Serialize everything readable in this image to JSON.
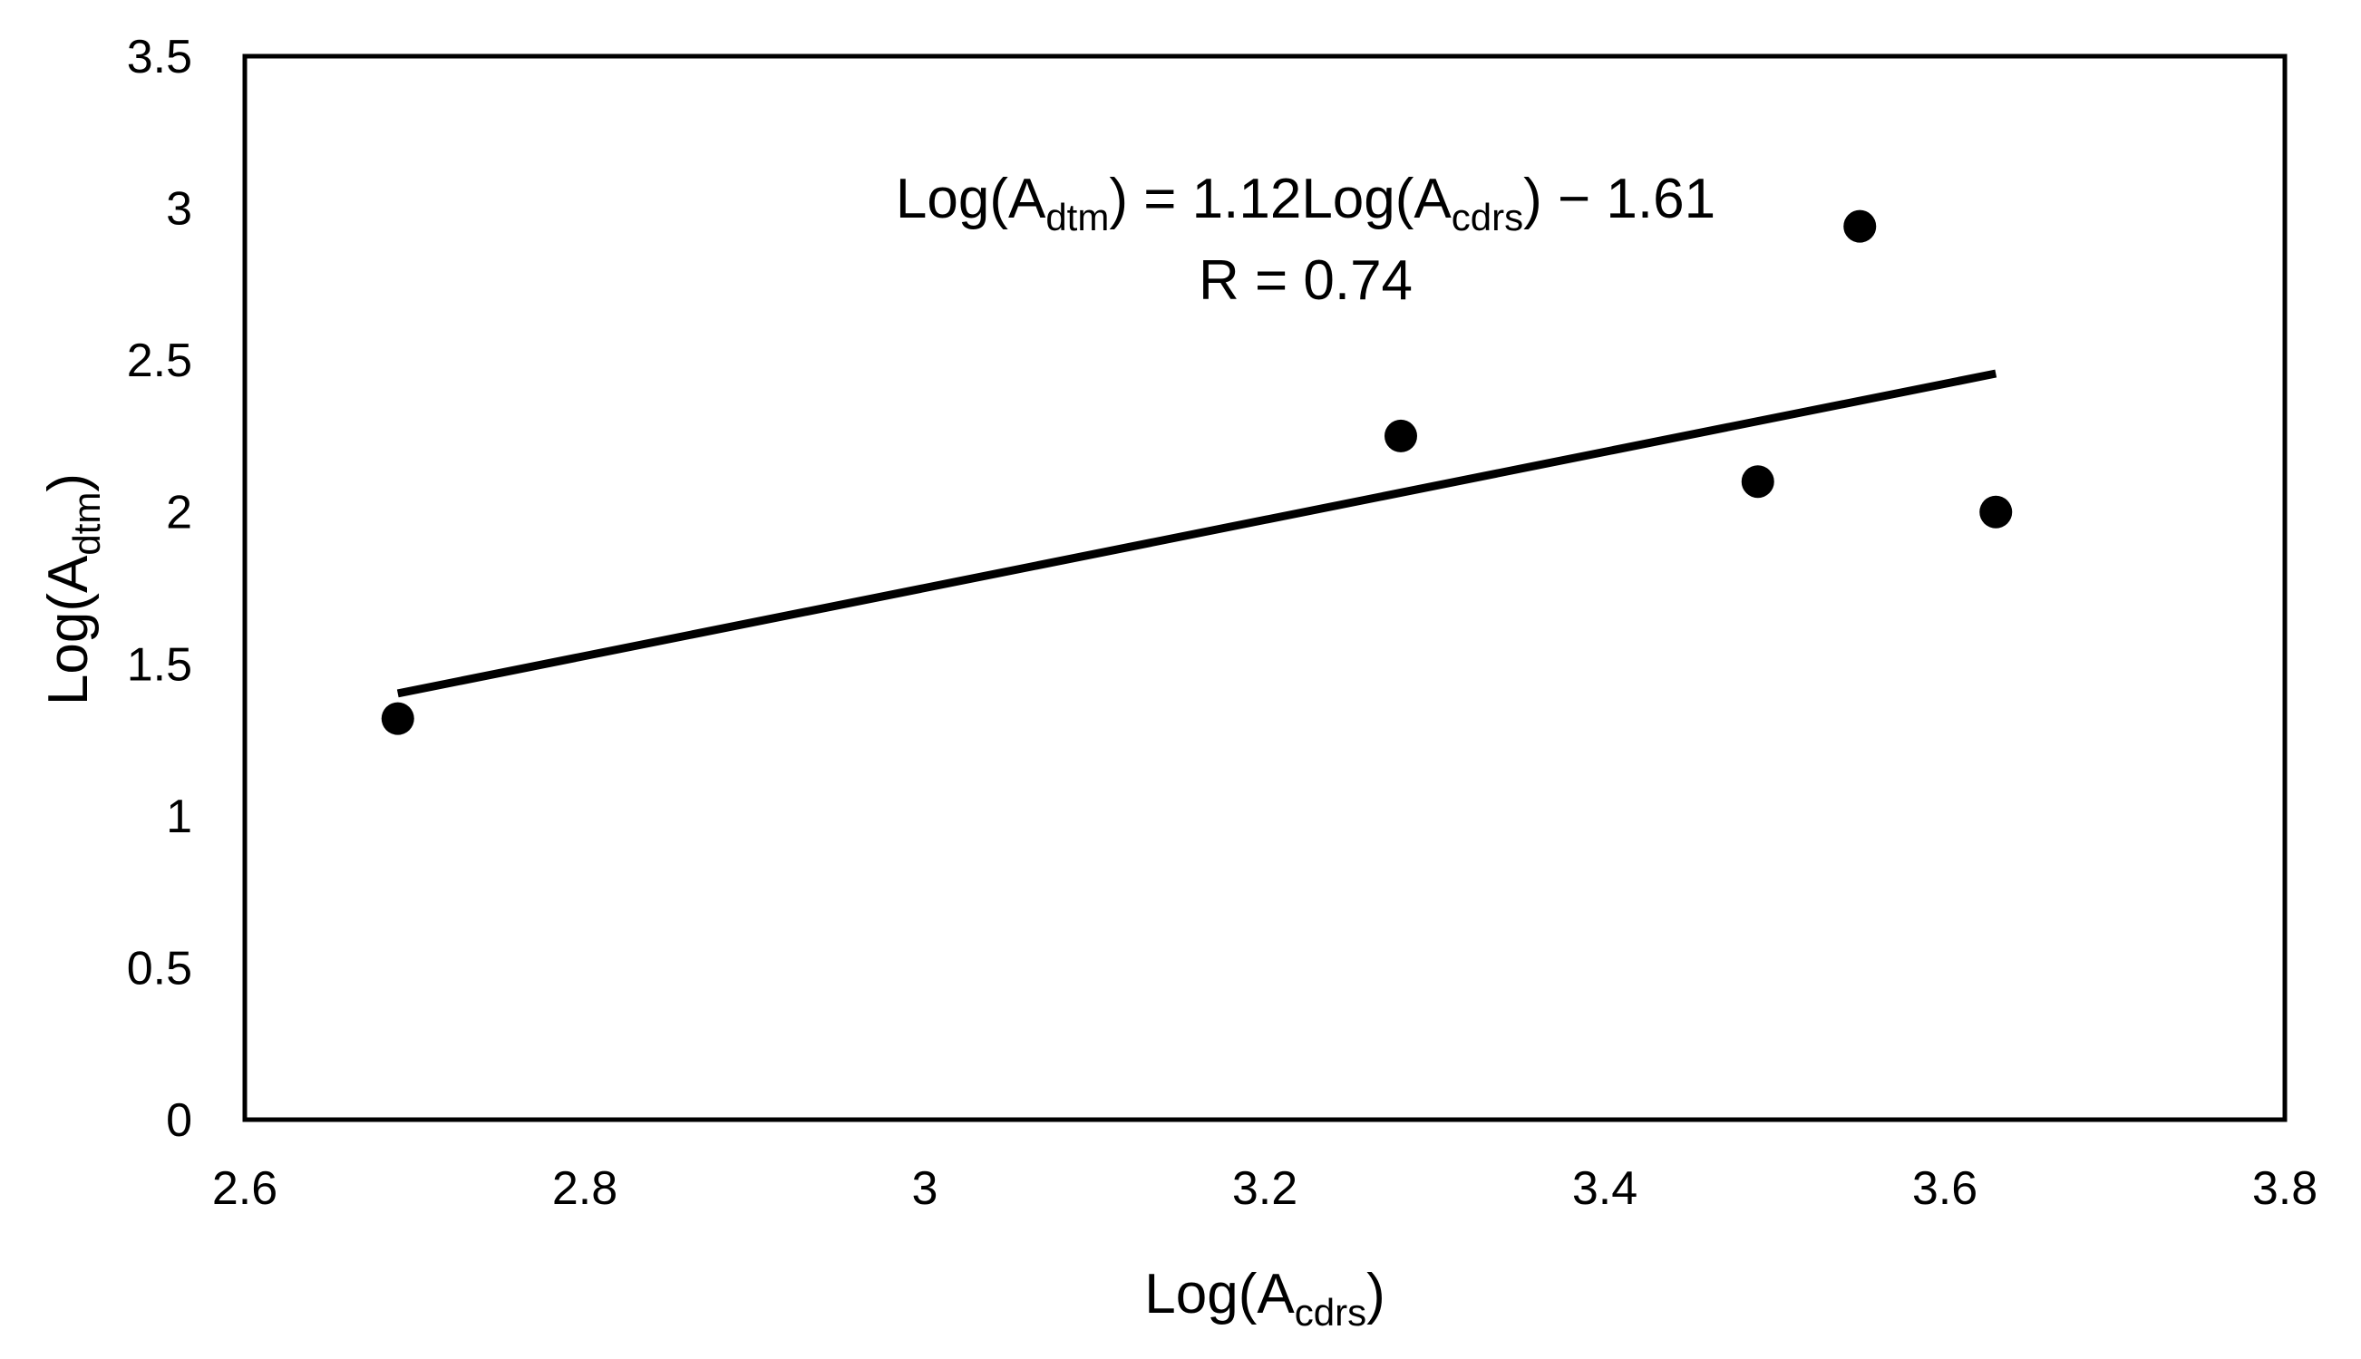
{
  "chart_data": {
    "type": "scatter",
    "title": "",
    "xlabel": {
      "base": "Log(A",
      "sub": "cdrs",
      "tail": ")"
    },
    "ylabel": {
      "base": "Log(A",
      "sub": "dtm",
      "tail": ")"
    },
    "xlim": [
      2.6,
      3.8
    ],
    "ylim": [
      0,
      3.5
    ],
    "xticks": [
      "2.6",
      "2.8",
      "3",
      "3.2",
      "3.4",
      "3.6",
      "3.8"
    ],
    "yticks": [
      "0",
      "0.5",
      "1",
      "1.5",
      "2",
      "2.5",
      "3",
      "3.5"
    ],
    "grid": false,
    "legend": "none",
    "points": [
      {
        "x": 2.69,
        "y": 1.32
      },
      {
        "x": 3.28,
        "y": 2.25
      },
      {
        "x": 3.49,
        "y": 2.1
      },
      {
        "x": 3.55,
        "y": 2.94
      },
      {
        "x": 3.63,
        "y": 2.0
      }
    ],
    "trendline": {
      "x": [
        2.69,
        3.63
      ],
      "slope": 1.12,
      "intercept": -1.61
    },
    "annotation": {
      "equation": {
        "p1": "Log(A",
        "s1": "dtm",
        "p2": ") = 1.12Log(A",
        "s2": "cdrs",
        "p3": ") − 1.61"
      },
      "r": "R = 0.74"
    },
    "colors": {
      "marker": "#000000",
      "line": "#000000",
      "frame": "#000000"
    }
  }
}
